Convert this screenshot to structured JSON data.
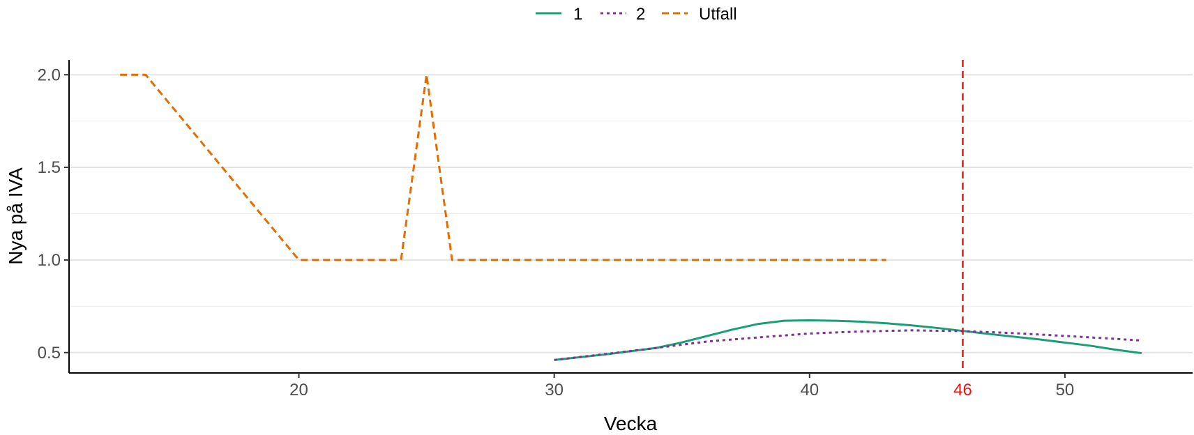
{
  "chart_data": {
    "type": "line",
    "xlabel": "Vecka",
    "ylabel": "Nya på IVA",
    "xlim": [
      11.0,
      55.0
    ],
    "ylim": [
      0.39,
      2.08
    ],
    "x_ticks": [
      "20",
      "30",
      "40",
      "50"
    ],
    "y_ticks": [
      "0.5",
      "1.0",
      "1.5",
      "2.0"
    ],
    "grid": "horizontal",
    "legend_position": "top",
    "series": [
      {
        "name": "1",
        "color": "#1b9e77",
        "style": "solid",
        "points": [
          [
            30,
            0.46
          ],
          [
            32,
            0.49
          ],
          [
            34,
            0.525
          ],
          [
            35,
            0.555
          ],
          [
            36,
            0.59
          ],
          [
            37,
            0.625
          ],
          [
            38,
            0.655
          ],
          [
            39,
            0.672
          ],
          [
            40,
            0.674
          ],
          [
            41,
            0.672
          ],
          [
            42,
            0.667
          ],
          [
            43,
            0.658
          ],
          [
            44,
            0.647
          ],
          [
            45,
            0.633
          ],
          [
            46,
            0.617
          ],
          [
            47,
            0.601
          ],
          [
            48,
            0.586
          ],
          [
            49,
            0.571
          ],
          [
            50,
            0.554
          ],
          [
            51,
            0.537
          ],
          [
            52,
            0.515
          ],
          [
            53,
            0.497
          ]
        ]
      },
      {
        "name": "2",
        "color": "#7b3294",
        "style": "dotted",
        "points": [
          [
            30,
            0.46
          ],
          [
            32,
            0.492
          ],
          [
            34,
            0.525
          ],
          [
            36,
            0.56
          ],
          [
            38,
            0.582
          ],
          [
            40,
            0.603
          ],
          [
            42,
            0.614
          ],
          [
            44,
            0.62
          ],
          [
            46,
            0.616
          ],
          [
            48,
            0.605
          ],
          [
            50,
            0.59
          ],
          [
            52,
            0.574
          ],
          [
            53,
            0.565
          ]
        ]
      },
      {
        "name": "Utfall",
        "color": "#e66c00",
        "style": "dashed",
        "points": [
          [
            13,
            2
          ],
          [
            14,
            2
          ],
          [
            20,
            1
          ],
          [
            24,
            1
          ],
          [
            25,
            2
          ],
          [
            26,
            1
          ],
          [
            43,
            1
          ]
        ]
      }
    ],
    "annotations": [
      {
        "type": "vline",
        "x": 46,
        "label": "46",
        "color": "#ee1111",
        "style": "dashed"
      }
    ]
  }
}
